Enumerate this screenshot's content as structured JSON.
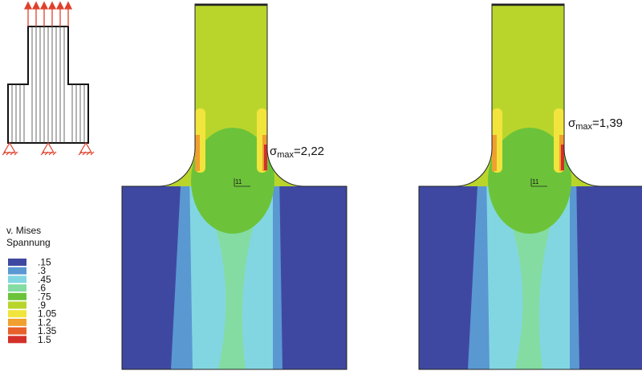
{
  "legend": {
    "title": [
      "v. Mises",
      "Spannung"
    ],
    "entries": [
      {
        "label": ".15",
        "color": "#3f48a0"
      },
      {
        "label": ".3",
        "color": "#5a98d2"
      },
      {
        "label": ".45",
        "color": "#82d6e2"
      },
      {
        "label": ".6",
        "color": "#84dca2"
      },
      {
        "label": ".75",
        "color": "#6cc33a"
      },
      {
        "label": ".9",
        "color": "#b9d52c"
      },
      {
        "label": "1.05",
        "color": "#f1e43c"
      },
      {
        "label": "1.2",
        "color": "#f0a02e"
      },
      {
        "label": "1.35",
        "color": "#e8602a"
      },
      {
        "label": "1.5",
        "color": "#d3302a"
      }
    ]
  },
  "panels": [
    {
      "annotation": {
        "symbol": "σ",
        "subscript": "max",
        "value": "=2,22"
      },
      "marker": "11"
    },
    {
      "annotation": {
        "symbol": "σ",
        "subscript": "max",
        "value": "=1,39"
      },
      "marker": "11"
    }
  ]
}
